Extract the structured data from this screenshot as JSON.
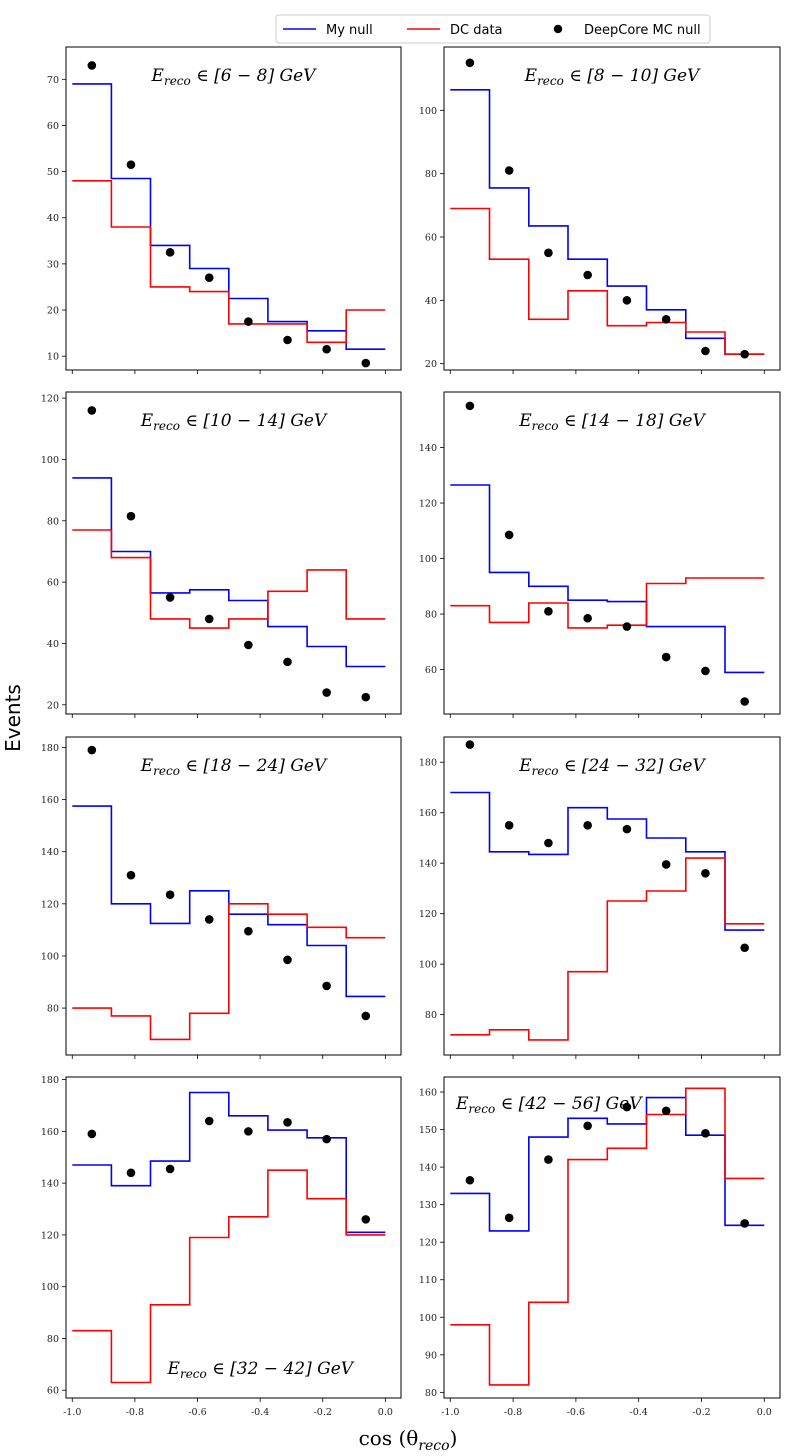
{
  "figure": {
    "xlabel": "cos (θ_reco)",
    "ylabel": "Events",
    "legend": {
      "placement": "top-center",
      "entries": [
        {
          "name": "My null",
          "color": "#0000ff",
          "style": "line"
        },
        {
          "name": "DC data",
          "color": "#ff0000",
          "style": "line"
        },
        {
          "name": "DeepCore MC null",
          "color": "#000000",
          "style": "marker"
        }
      ]
    }
  },
  "chart_data": [
    {
      "type": "line",
      "title": "E_reco ∈ [6 − 8] GeV",
      "title_pos": "top-center",
      "bin_edges": [
        -1.0,
        -0.875,
        -0.75,
        -0.625,
        -0.5,
        -0.375,
        -0.25,
        -0.125,
        0.0
      ],
      "x_points": [
        -0.9375,
        -0.8125,
        -0.6875,
        -0.5625,
        -0.4375,
        -0.3125,
        -0.1875,
        -0.0625
      ],
      "series": [
        {
          "name": "My null",
          "values": [
            69,
            48.5,
            34,
            29,
            22.5,
            17.5,
            15.5,
            11.5
          ]
        },
        {
          "name": "DC data",
          "values": [
            48,
            38,
            25,
            24,
            17,
            17,
            13,
            20
          ]
        },
        {
          "name": "DeepCore MC null",
          "values": [
            73,
            51.5,
            32.5,
            27,
            17.5,
            13.5,
            11.5,
            8.5
          ]
        }
      ],
      "yticks": [
        10,
        20,
        30,
        40,
        50,
        60,
        70
      ],
      "xlim": [
        -1.02,
        0.05
      ],
      "ylim": [
        7,
        77
      ]
    },
    {
      "type": "line",
      "title": "E_reco ∈ [8 − 10] GeV",
      "title_pos": "top-center",
      "bin_edges": [
        -1.0,
        -0.875,
        -0.75,
        -0.625,
        -0.5,
        -0.375,
        -0.25,
        -0.125,
        0.0
      ],
      "x_points": [
        -0.9375,
        -0.8125,
        -0.6875,
        -0.5625,
        -0.4375,
        -0.3125,
        -0.1875,
        -0.0625
      ],
      "series": [
        {
          "name": "My null",
          "values": [
            106.5,
            75.5,
            63.5,
            53,
            44.5,
            37,
            28,
            23
          ]
        },
        {
          "name": "DC data",
          "values": [
            69,
            53,
            34,
            43,
            32,
            33,
            30,
            23
          ]
        },
        {
          "name": "DeepCore MC null",
          "values": [
            115,
            81,
            55,
            48,
            40,
            34,
            24,
            23
          ]
        }
      ],
      "yticks": [
        20,
        40,
        60,
        80,
        100
      ],
      "xlim": [
        -1.02,
        0.05
      ],
      "ylim": [
        18,
        120
      ]
    },
    {
      "type": "line",
      "title": "E_reco ∈ [10 − 14] GeV",
      "title_pos": "top-center",
      "bin_edges": [
        -1.0,
        -0.875,
        -0.75,
        -0.625,
        -0.5,
        -0.375,
        -0.25,
        -0.125,
        0.0
      ],
      "x_points": [
        -0.9375,
        -0.8125,
        -0.6875,
        -0.5625,
        -0.4375,
        -0.3125,
        -0.1875,
        -0.0625
      ],
      "series": [
        {
          "name": "My null",
          "values": [
            94,
            70,
            56.5,
            57.5,
            54,
            45.5,
            39,
            32.5
          ]
        },
        {
          "name": "DC data",
          "values": [
            77,
            68,
            48,
            45,
            48,
            57,
            64,
            48
          ]
        },
        {
          "name": "DeepCore MC null",
          "values": [
            116,
            81.5,
            55,
            48,
            39.5,
            34,
            24,
            22.5
          ]
        }
      ],
      "yticks": [
        20,
        40,
        60,
        80,
        100,
        120
      ],
      "xlim": [
        -1.02,
        0.05
      ],
      "ylim": [
        17,
        122
      ]
    },
    {
      "type": "line",
      "title": "E_reco ∈ [14 − 18] GeV",
      "title_pos": "top-center",
      "bin_edges": [
        -1.0,
        -0.875,
        -0.75,
        -0.625,
        -0.5,
        -0.375,
        -0.25,
        -0.125,
        0.0
      ],
      "x_points": [
        -0.9375,
        -0.8125,
        -0.6875,
        -0.5625,
        -0.4375,
        -0.3125,
        -0.1875,
        -0.0625
      ],
      "series": [
        {
          "name": "My null",
          "values": [
            126.5,
            95,
            90,
            85,
            84.5,
            75.5,
            75.5,
            59
          ]
        },
        {
          "name": "DC data",
          "values": [
            83,
            77,
            84,
            75,
            76,
            91,
            93,
            93
          ]
        },
        {
          "name": "DeepCore MC null",
          "values": [
            155,
            108.5,
            81,
            78.5,
            75.5,
            64.5,
            59.5,
            48.5
          ]
        }
      ],
      "yticks": [
        60,
        80,
        100,
        120,
        140
      ],
      "xlim": [
        -1.02,
        0.05
      ],
      "ylim": [
        44,
        160
      ]
    },
    {
      "type": "line",
      "title": "E_reco ∈ [18 − 24] GeV",
      "title_pos": "top-center",
      "bin_edges": [
        -1.0,
        -0.875,
        -0.75,
        -0.625,
        -0.5,
        -0.375,
        -0.25,
        -0.125,
        0.0
      ],
      "x_points": [
        -0.9375,
        -0.8125,
        -0.6875,
        -0.5625,
        -0.4375,
        -0.3125,
        -0.1875,
        -0.0625
      ],
      "series": [
        {
          "name": "My null",
          "values": [
            157.5,
            120,
            112.5,
            125,
            116,
            112,
            104,
            84.5
          ]
        },
        {
          "name": "DC data",
          "values": [
            80,
            77,
            68,
            78,
            120,
            116,
            111,
            107
          ]
        },
        {
          "name": "DeepCore MC null",
          "values": [
            179,
            131,
            123.5,
            114,
            109.5,
            98.5,
            88.5,
            77
          ]
        }
      ],
      "yticks": [
        80,
        100,
        120,
        140,
        160,
        180
      ],
      "xlim": [
        -1.02,
        0.05
      ],
      "ylim": [
        62,
        184
      ]
    },
    {
      "type": "line",
      "title": "E_reco ∈ [24 − 32] GeV",
      "title_pos": "top-center",
      "bin_edges": [
        -1.0,
        -0.875,
        -0.75,
        -0.625,
        -0.5,
        -0.375,
        -0.25,
        -0.125,
        0.0
      ],
      "x_points": [
        -0.9375,
        -0.8125,
        -0.6875,
        -0.5625,
        -0.4375,
        -0.3125,
        -0.1875,
        -0.0625
      ],
      "series": [
        {
          "name": "My null",
          "values": [
            168,
            144.5,
            143.5,
            162,
            157.5,
            150,
            144.5,
            113.5
          ]
        },
        {
          "name": "DC data",
          "values": [
            72,
            74,
            70,
            97,
            125,
            129,
            142,
            116
          ]
        },
        {
          "name": "DeepCore MC null",
          "values": [
            187,
            155,
            148,
            155,
            153.5,
            139.5,
            136,
            106.5
          ]
        }
      ],
      "yticks": [
        80,
        100,
        120,
        140,
        160,
        180
      ],
      "xlim": [
        -1.02,
        0.05
      ],
      "ylim": [
        64,
        190
      ]
    },
    {
      "type": "line",
      "title": "E_reco ∈ [32 − 42] GeV",
      "title_pos": "bottom-center",
      "bin_edges": [
        -1.0,
        -0.875,
        -0.75,
        -0.625,
        -0.5,
        -0.375,
        -0.25,
        -0.125,
        0.0
      ],
      "x_points": [
        -0.9375,
        -0.8125,
        -0.6875,
        -0.5625,
        -0.4375,
        -0.3125,
        -0.1875,
        -0.0625
      ],
      "series": [
        {
          "name": "My null",
          "values": [
            147,
            139,
            148.5,
            175,
            166,
            160.5,
            157.5,
            121
          ]
        },
        {
          "name": "DC data",
          "values": [
            83,
            63,
            93,
            119,
            127,
            145,
            134,
            120
          ]
        },
        {
          "name": "DeepCore MC null",
          "values": [
            159,
            144,
            145.5,
            164,
            160,
            163.5,
            157,
            126
          ]
        }
      ],
      "yticks": [
        60,
        80,
        100,
        120,
        140,
        160,
        180
      ],
      "xlim": [
        -1.02,
        0.05
      ],
      "ylim": [
        57,
        181
      ]
    },
    {
      "type": "line",
      "title": "E_reco ∈ [42 − 56] GeV",
      "title_pos": "top-left",
      "bin_edges": [
        -1.0,
        -0.875,
        -0.75,
        -0.625,
        -0.5,
        -0.375,
        -0.25,
        -0.125,
        0.0
      ],
      "x_points": [
        -0.9375,
        -0.8125,
        -0.6875,
        -0.5625,
        -0.4375,
        -0.3125,
        -0.1875,
        -0.0625
      ],
      "series": [
        {
          "name": "My null",
          "values": [
            133,
            123,
            148,
            153,
            151.5,
            158.5,
            148.5,
            124.5
          ]
        },
        {
          "name": "DC data",
          "values": [
            98,
            82,
            104,
            142,
            145,
            154,
            161,
            137
          ]
        },
        {
          "name": "DeepCore MC null",
          "values": [
            136.5,
            126.5,
            142,
            151,
            156,
            155,
            149,
            125
          ]
        }
      ],
      "yticks": [
        80,
        90,
        100,
        110,
        120,
        130,
        140,
        150,
        160
      ],
      "xlim": [
        -1.02,
        0.05
      ],
      "ylim": [
        78.5,
        164
      ]
    }
  ],
  "xticks": [
    "-1.0",
    "-0.8",
    "-0.6",
    "-0.4",
    "-0.2",
    "0.0"
  ],
  "xtick_values": [
    -1.0,
    -0.8,
    -0.6,
    -0.4,
    -0.2,
    0.0
  ]
}
